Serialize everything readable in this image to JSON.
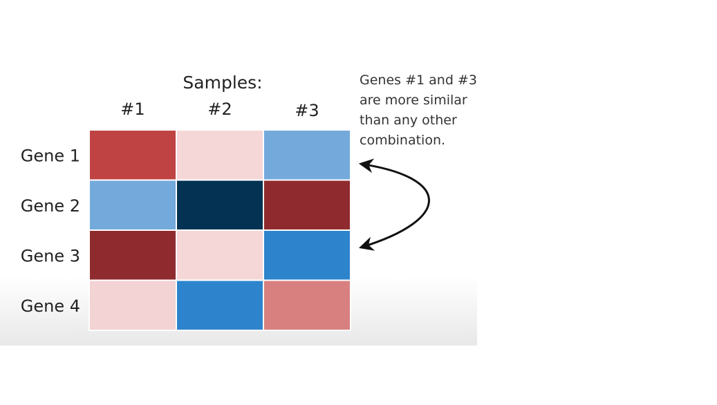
{
  "chart_data": {
    "type": "heatmap",
    "title": "Samples:",
    "columns": [
      "#1",
      "#2",
      "#3"
    ],
    "rows": [
      "Gene 1",
      "Gene 2",
      "Gene 3",
      "Gene 4"
    ],
    "cell_colors": [
      [
        "#c04343",
        "#f5d7d8",
        "#74a9db"
      ],
      [
        "#74a9db",
        "#033252",
        "#8f2b2e"
      ],
      [
        "#8f2b2e",
        "#f5d7d8",
        "#2e84cc"
      ],
      [
        "#f3d3d4",
        "#2e84cc",
        "#d88080"
      ]
    ],
    "annotation": {
      "lines": [
        "Genes #1 and #3",
        "are more similar",
        "than any other",
        "combination."
      ],
      "arrow_from_row": "Gene 1",
      "arrow_to_row": "Gene 3"
    }
  },
  "colors": {
    "text": "#222222",
    "arrow": "#111111",
    "grid_line": "#ffffff"
  }
}
